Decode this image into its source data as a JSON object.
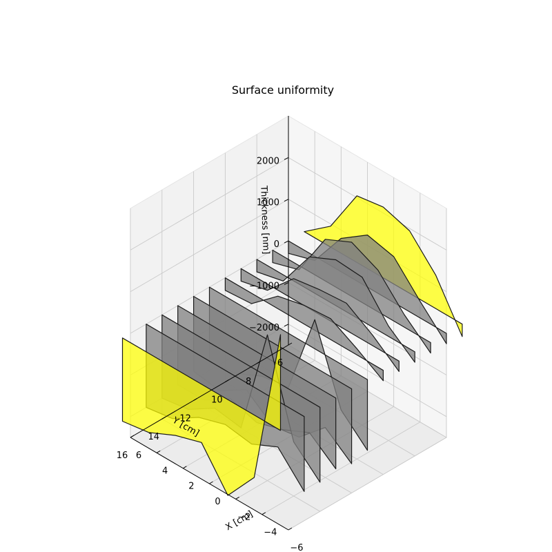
{
  "chart_data": {
    "type": "3d-polygon",
    "title": "Surface uniformity",
    "xlabel": "X [cm]",
    "ylabel": "Y [cm]",
    "zlabel": "Thickness [nm]",
    "xlim": [
      -6,
      6
    ],
    "ylim": [
      6,
      16
    ],
    "zlim": [
      -2500,
      3000
    ],
    "xticks": [
      -6,
      -4,
      -2,
      0,
      2,
      4,
      6
    ],
    "yticks": [
      6,
      8,
      10,
      12,
      14,
      16
    ],
    "zticks": [
      -2000,
      -1000,
      0,
      1000,
      2000
    ],
    "grid": true,
    "colors": {
      "edge": "#000000",
      "yellow": "#ffff00",
      "gray": "#808080",
      "pane_left": "#f2f2f2",
      "pane_back": "#f6f6f6",
      "pane_floor": "#ececec"
    },
    "series": [
      {
        "y": 5.0,
        "color": "yellow",
        "x": [
          6,
          4,
          2,
          0,
          -2,
          -4,
          -6
        ],
        "z": [
          0,
          500,
          1600,
          1700,
          1500,
          800,
          -300
        ]
      },
      {
        "y": 6.0,
        "color": "gray",
        "x": [
          6,
          4,
          2,
          0,
          -2,
          -4,
          -6
        ],
        "z": [
          -300,
          -100,
          800,
          1250,
          1100,
          400,
          -250
        ]
      },
      {
        "y": 7.0,
        "color": "gray",
        "x": [
          6,
          4,
          2,
          0,
          -2,
          -4,
          -6
        ],
        "z": [
          -300,
          -100,
          1000,
          1300,
          1000,
          300,
          -250
        ]
      },
      {
        "y": 8.0,
        "color": "gray",
        "x": [
          6,
          4,
          2,
          0,
          -2,
          -4,
          -6
        ],
        "z": [
          -300,
          -150,
          800,
          1100,
          1050,
          250,
          -250
        ]
      },
      {
        "y": 9.0,
        "color": "gray",
        "x": [
          6,
          4,
          2,
          0,
          -2,
          -4,
          -6
        ],
        "z": [
          -300,
          -150,
          500,
          600,
          650,
          250,
          -250
        ]
      },
      {
        "y": 10.0,
        "color": "gray",
        "x": [
          6,
          4,
          2,
          0,
          -2,
          -4,
          -6
        ],
        "z": [
          -300,
          -250,
          300,
          450,
          500,
          150,
          -250
        ]
      },
      {
        "y": 11.0,
        "color": "gray",
        "x": [
          6,
          4,
          2,
          0,
          -2,
          -4,
          -6
        ],
        "z": [
          -1800,
          -1700,
          -1400,
          -1300,
          700,
          -1100,
          -1700
        ]
      },
      {
        "y": 12.0,
        "color": "gray",
        "x": [
          6,
          4,
          2,
          0,
          -2,
          -4,
          -6
        ],
        "z": [
          -1800,
          -1900,
          -1500,
          -2000,
          -1900,
          -1300,
          -1800
        ]
      },
      {
        "y": 13.0,
        "color": "gray",
        "x": [
          6,
          4,
          2,
          0,
          -2,
          -4,
          -6
        ],
        "z": [
          -1900,
          -1900,
          -1500,
          -1700,
          -1500,
          -1200,
          -1700
        ]
      },
      {
        "y": 14.0,
        "color": "gray",
        "x": [
          6,
          4,
          2,
          0,
          -2,
          -4,
          -6
        ],
        "z": [
          -2000,
          -1900,
          -1500,
          -1600,
          1000,
          -1200,
          -1800
        ]
      },
      {
        "y": 15.0,
        "color": "gray",
        "x": [
          6,
          4,
          2,
          0,
          -2,
          -4,
          -6
        ],
        "z": [
          -2000,
          -1900,
          -1500,
          -1300,
          -1400,
          -1100,
          -1800
        ]
      },
      {
        "y": 16.5,
        "color": "yellow",
        "x": [
          6,
          4,
          2,
          0,
          -2,
          -4,
          -6
        ],
        "z": [
          -2000,
          -1900,
          -1600,
          -1400,
          -2300,
          -1500,
          2300
        ]
      }
    ]
  }
}
